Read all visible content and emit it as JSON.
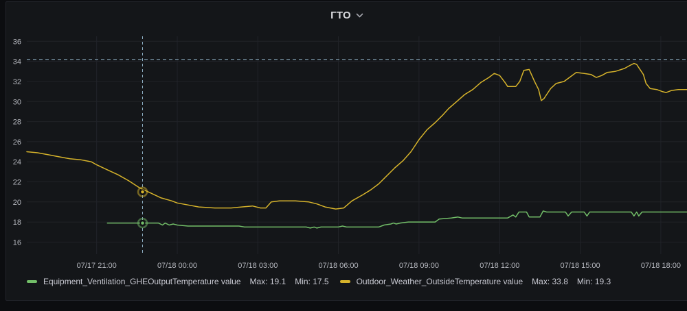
{
  "panel": {
    "title": "ГТО"
  },
  "colors": {
    "page_bg": "#0c0d10",
    "panel_bg": "#141619",
    "panel_border": "#23252c",
    "grid": "#212329",
    "axis_text": "#b5b7be",
    "crosshair": "#8fb1c6",
    "threshold": "#8fb1c6",
    "green_series": "#73bf69",
    "yellow_series": "#d6b32b"
  },
  "legend": {
    "entries": [
      {
        "label": "Equipment_Ventilation_GHEOutputTemperature value",
        "max": "Max: 19.1",
        "min": "Min: 17.5",
        "color": "#73bf69"
      },
      {
        "label": "Outdoor_Weather_OutsideTemperature value",
        "max": "Max: 33.8",
        "min": "Min: 19.3",
        "color": "#d6b32b"
      }
    ]
  },
  "chart_data": {
    "type": "line",
    "title": "ГТО",
    "xlabel": "",
    "ylabel": "",
    "grid": true,
    "legend_position": "bottom",
    "x_axis": {
      "unit": "hours since 07/17 00:00",
      "domain_hours": [
        18.4,
        43.0
      ],
      "ticks": [
        {
          "pos": 21,
          "label": "07/17 21:00"
        },
        {
          "pos": 24,
          "label": "07/18 00:00"
        },
        {
          "pos": 27,
          "label": "07/18 03:00"
        },
        {
          "pos": 30,
          "label": "07/18 06:00"
        },
        {
          "pos": 33,
          "label": "07/18 09:00"
        },
        {
          "pos": 36,
          "label": "07/18 12:00"
        },
        {
          "pos": 39,
          "label": "07/18 15:00"
        },
        {
          "pos": 42,
          "label": "07/18 18:00"
        }
      ]
    },
    "y_axis": {
      "domain": [
        14.8,
        36.5
      ],
      "ticks": [
        16,
        18,
        20,
        22,
        24,
        26,
        28,
        30,
        32,
        34,
        36
      ]
    },
    "threshold_line": {
      "value": 34.2,
      "style": "dashed",
      "color": "#8fb1c6"
    },
    "crosshair": {
      "x_hours": 22.71,
      "points": [
        {
          "series_index": 1,
          "value": 21.0
        },
        {
          "series_index": 0,
          "value": 17.9
        }
      ]
    },
    "series": [
      {
        "name": "Equipment_Ventilation_GHEOutputTemperature value",
        "color": "#73bf69",
        "max": 19.1,
        "min": 17.5,
        "points": [
          [
            21.4,
            17.9
          ],
          [
            22.0,
            17.9
          ],
          [
            23.3,
            17.9
          ],
          [
            23.45,
            17.7
          ],
          [
            23.55,
            17.9
          ],
          [
            23.7,
            17.7
          ],
          [
            23.85,
            17.8
          ],
          [
            24.0,
            17.7
          ],
          [
            24.4,
            17.6
          ],
          [
            25.5,
            17.6
          ],
          [
            26.3,
            17.6
          ],
          [
            26.5,
            17.5
          ],
          [
            28.8,
            17.5
          ],
          [
            28.95,
            17.4
          ],
          [
            29.1,
            17.5
          ],
          [
            29.2,
            17.4
          ],
          [
            29.35,
            17.5
          ],
          [
            30.0,
            17.5
          ],
          [
            30.15,
            17.6
          ],
          [
            30.3,
            17.5
          ],
          [
            31.5,
            17.5
          ],
          [
            31.7,
            17.7
          ],
          [
            31.95,
            17.8
          ],
          [
            32.05,
            17.9
          ],
          [
            32.15,
            17.8
          ],
          [
            32.3,
            17.9
          ],
          [
            32.6,
            18.0
          ],
          [
            33.6,
            18.0
          ],
          [
            33.75,
            18.3
          ],
          [
            34.2,
            18.4
          ],
          [
            34.45,
            18.5
          ],
          [
            34.6,
            18.4
          ],
          [
            36.3,
            18.4
          ],
          [
            36.5,
            18.7
          ],
          [
            36.6,
            18.5
          ],
          [
            36.72,
            19.0
          ],
          [
            37.0,
            19.0
          ],
          [
            37.1,
            18.5
          ],
          [
            37.5,
            18.5
          ],
          [
            37.62,
            19.1
          ],
          [
            37.75,
            19.0
          ],
          [
            38.45,
            19.0
          ],
          [
            38.55,
            18.6
          ],
          [
            38.68,
            19.0
          ],
          [
            39.15,
            19.0
          ],
          [
            39.25,
            18.6
          ],
          [
            39.35,
            19.0
          ],
          [
            40.9,
            19.0
          ],
          [
            41.0,
            18.6
          ],
          [
            41.1,
            19.0
          ],
          [
            41.18,
            18.6
          ],
          [
            41.3,
            19.0
          ],
          [
            43.0,
            19.0
          ]
        ]
      },
      {
        "name": "Outdoor_Weather_OutsideTemperature value",
        "color": "#d6b32b",
        "max": 33.8,
        "min": 19.3,
        "points": [
          [
            18.4,
            25.0
          ],
          [
            18.8,
            24.9
          ],
          [
            19.2,
            24.7
          ],
          [
            19.6,
            24.5
          ],
          [
            20.0,
            24.3
          ],
          [
            20.4,
            24.2
          ],
          [
            20.8,
            24.0
          ],
          [
            21.0,
            23.7
          ],
          [
            21.4,
            23.2
          ],
          [
            21.8,
            22.7
          ],
          [
            22.2,
            22.1
          ],
          [
            22.6,
            21.4
          ],
          [
            23.0,
            20.9
          ],
          [
            23.4,
            20.4
          ],
          [
            23.8,
            20.1
          ],
          [
            24.0,
            19.9
          ],
          [
            24.4,
            19.7
          ],
          [
            24.8,
            19.5
          ],
          [
            25.4,
            19.4
          ],
          [
            26.0,
            19.4
          ],
          [
            26.4,
            19.5
          ],
          [
            26.8,
            19.6
          ],
          [
            27.1,
            19.4
          ],
          [
            27.3,
            19.4
          ],
          [
            27.5,
            20.0
          ],
          [
            27.8,
            20.1
          ],
          [
            28.4,
            20.1
          ],
          [
            28.9,
            20.0
          ],
          [
            29.2,
            19.8
          ],
          [
            29.5,
            19.5
          ],
          [
            29.9,
            19.3
          ],
          [
            30.2,
            19.4
          ],
          [
            30.5,
            20.1
          ],
          [
            30.9,
            20.7
          ],
          [
            31.2,
            21.2
          ],
          [
            31.5,
            21.8
          ],
          [
            31.8,
            22.6
          ],
          [
            32.1,
            23.4
          ],
          [
            32.4,
            24.1
          ],
          [
            32.7,
            25.0
          ],
          [
            33.0,
            26.2
          ],
          [
            33.3,
            27.2
          ],
          [
            33.6,
            27.9
          ],
          [
            33.9,
            28.7
          ],
          [
            34.1,
            29.3
          ],
          [
            34.4,
            30.0
          ],
          [
            34.7,
            30.7
          ],
          [
            35.0,
            31.2
          ],
          [
            35.3,
            31.9
          ],
          [
            35.6,
            32.4
          ],
          [
            35.8,
            32.8
          ],
          [
            36.0,
            32.6
          ],
          [
            36.2,
            31.9
          ],
          [
            36.3,
            31.5
          ],
          [
            36.6,
            31.5
          ],
          [
            36.75,
            32.0
          ],
          [
            36.9,
            33.1
          ],
          [
            37.1,
            33.2
          ],
          [
            37.3,
            32.0
          ],
          [
            37.45,
            31.2
          ],
          [
            37.55,
            30.1
          ],
          [
            37.65,
            30.3
          ],
          [
            37.75,
            30.7
          ],
          [
            37.9,
            31.3
          ],
          [
            38.1,
            31.8
          ],
          [
            38.4,
            32.0
          ],
          [
            38.65,
            32.5
          ],
          [
            38.85,
            32.9
          ],
          [
            39.15,
            32.8
          ],
          [
            39.4,
            32.7
          ],
          [
            39.6,
            32.4
          ],
          [
            39.8,
            32.6
          ],
          [
            40.0,
            32.9
          ],
          [
            40.3,
            33.0
          ],
          [
            40.65,
            33.3
          ],
          [
            40.85,
            33.6
          ],
          [
            41.0,
            33.8
          ],
          [
            41.1,
            33.7
          ],
          [
            41.2,
            33.3
          ],
          [
            41.35,
            32.7
          ],
          [
            41.45,
            31.8
          ],
          [
            41.6,
            31.3
          ],
          [
            41.85,
            31.2
          ],
          [
            42.05,
            31.0
          ],
          [
            42.2,
            30.9
          ],
          [
            42.4,
            31.1
          ],
          [
            42.65,
            31.2
          ],
          [
            43.0,
            31.2
          ]
        ]
      }
    ]
  }
}
